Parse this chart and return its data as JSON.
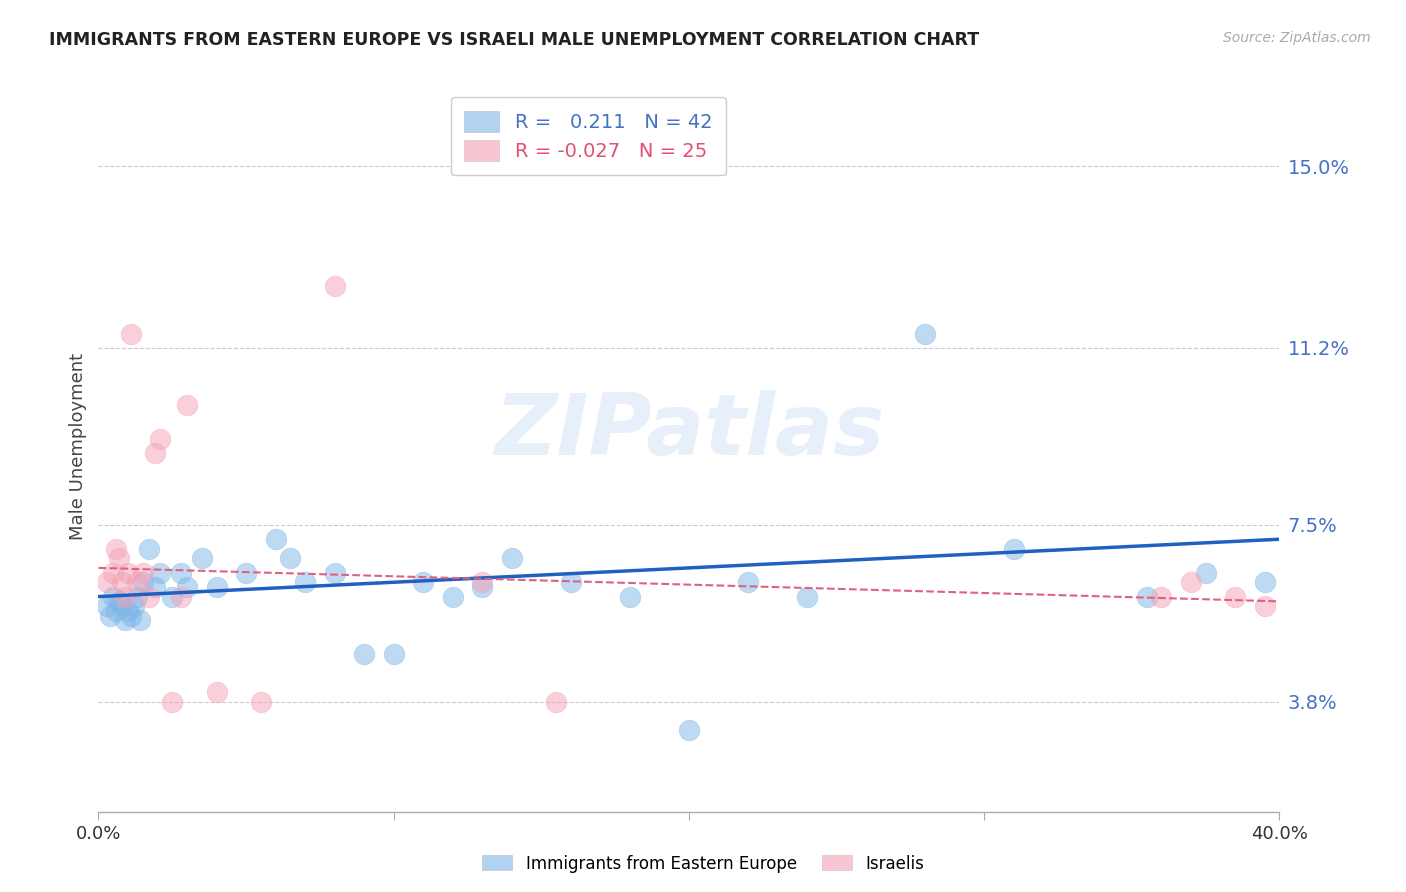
{
  "title": "IMMIGRANTS FROM EASTERN EUROPE VS ISRAELI MALE UNEMPLOYMENT CORRELATION CHART",
  "source": "Source: ZipAtlas.com",
  "ylabel": "Male Unemployment",
  "yticks": [
    0.038,
    0.075,
    0.112,
    0.15
  ],
  "ytick_labels": [
    "3.8%",
    "7.5%",
    "11.2%",
    "15.0%"
  ],
  "xlim": [
    0.0,
    0.4
  ],
  "ylim": [
    0.015,
    0.168
  ],
  "blue_scatter_x": [
    0.003,
    0.004,
    0.005,
    0.006,
    0.007,
    0.008,
    0.009,
    0.01,
    0.011,
    0.012,
    0.013,
    0.014,
    0.015,
    0.017,
    0.019,
    0.021,
    0.025,
    0.028,
    0.03,
    0.035,
    0.04,
    0.05,
    0.06,
    0.065,
    0.07,
    0.08,
    0.09,
    0.1,
    0.11,
    0.12,
    0.13,
    0.14,
    0.16,
    0.18,
    0.2,
    0.22,
    0.24,
    0.28,
    0.31,
    0.355,
    0.375,
    0.395
  ],
  "blue_scatter_y": [
    0.058,
    0.056,
    0.06,
    0.057,
    0.059,
    0.058,
    0.055,
    0.057,
    0.056,
    0.058,
    0.06,
    0.055,
    0.063,
    0.07,
    0.062,
    0.065,
    0.06,
    0.065,
    0.062,
    0.068,
    0.062,
    0.065,
    0.072,
    0.068,
    0.063,
    0.065,
    0.048,
    0.048,
    0.063,
    0.06,
    0.062,
    0.068,
    0.063,
    0.06,
    0.032,
    0.063,
    0.06,
    0.115,
    0.07,
    0.06,
    0.065,
    0.063
  ],
  "pink_scatter_x": [
    0.003,
    0.005,
    0.006,
    0.007,
    0.008,
    0.009,
    0.01,
    0.011,
    0.013,
    0.015,
    0.017,
    0.019,
    0.021,
    0.025,
    0.028,
    0.03,
    0.04,
    0.055,
    0.08,
    0.13,
    0.155,
    0.36,
    0.37,
    0.385,
    0.395
  ],
  "pink_scatter_y": [
    0.063,
    0.065,
    0.07,
    0.068,
    0.063,
    0.06,
    0.065,
    0.115,
    0.063,
    0.065,
    0.06,
    0.09,
    0.093,
    0.038,
    0.06,
    0.1,
    0.04,
    0.038,
    0.125,
    0.063,
    0.038,
    0.06,
    0.063,
    0.06,
    0.058
  ],
  "blue_line_y_start": 0.06,
  "blue_line_y_end": 0.072,
  "pink_line_y_start": 0.066,
  "pink_line_y_end": 0.059,
  "watermark": "ZIPatlas",
  "background_color": "#ffffff",
  "blue_color": "#7eb7e8",
  "pink_color": "#f4a0b5",
  "blue_line_color": "#2060c0",
  "pink_line_color": "#e06080",
  "legend_entries": [
    {
      "label": "Immigrants from Eastern Europe",
      "R": "0.211",
      "N": "42"
    },
    {
      "label": "Israelis",
      "R": "-0.027",
      "N": "25"
    }
  ]
}
